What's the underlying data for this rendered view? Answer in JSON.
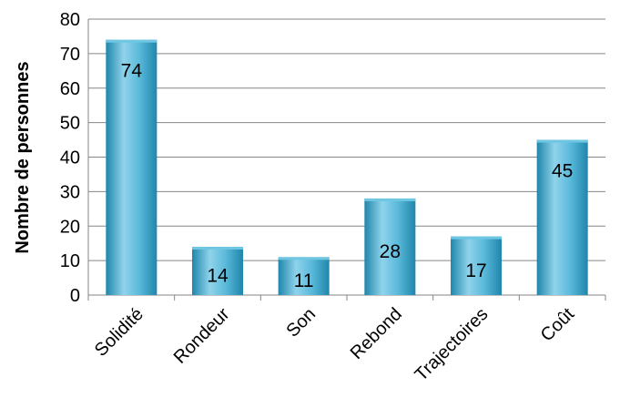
{
  "chart_data": {
    "type": "bar",
    "categories": [
      "Solidité",
      "Rondeur",
      "Son",
      "Rebond",
      "Trajectoires",
      "Coût"
    ],
    "values": [
      74,
      14,
      11,
      28,
      17,
      45
    ],
    "title": "",
    "xlabel": "",
    "ylabel": "Nombre de personnes",
    "ylim": [
      0,
      80
    ],
    "yticks": [
      0,
      10,
      20,
      30,
      40,
      50,
      60,
      70,
      80
    ],
    "grid": true,
    "legend": "none",
    "colors": {
      "bar_light": "#8fd3ea",
      "bar_mid": "#3aa9cf",
      "bar_dark": "#1f86ab",
      "bar_top": "#6fc6e3"
    }
  }
}
